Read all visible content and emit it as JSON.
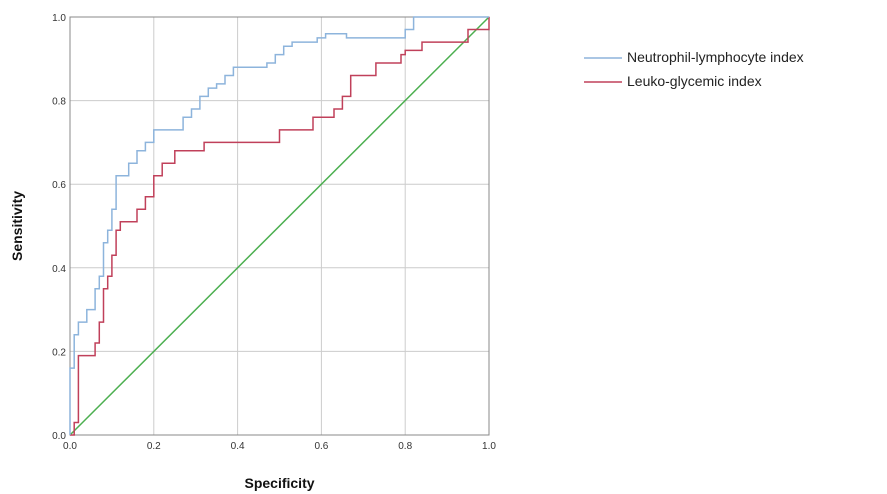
{
  "chart_data": {
    "type": "line",
    "title": "",
    "xlabel": "Specificity",
    "ylabel": "Sensitivity",
    "xlim": [
      0.0,
      1.0
    ],
    "ylim": [
      0.0,
      1.0
    ],
    "xticks": [
      "0.0",
      "0.2",
      "0.4",
      "0.6",
      "0.8",
      "1.0"
    ],
    "yticks": [
      "0.0",
      "0.2",
      "0.4",
      "0.6",
      "0.8",
      "1.0"
    ],
    "grid": true,
    "legend_position": "top-right",
    "series": [
      {
        "name": "Neutrophil-lymphocyte index",
        "color": "#8db4dc",
        "x": [
          0.0,
          0.0,
          0.01,
          0.01,
          0.02,
          0.02,
          0.04,
          0.04,
          0.06,
          0.06,
          0.07,
          0.07,
          0.08,
          0.08,
          0.09,
          0.09,
          0.1,
          0.1,
          0.11,
          0.11,
          0.14,
          0.14,
          0.16,
          0.16,
          0.18,
          0.18,
          0.2,
          0.2,
          0.27,
          0.27,
          0.29,
          0.29,
          0.31,
          0.31,
          0.33,
          0.33,
          0.35,
          0.35,
          0.37,
          0.37,
          0.39,
          0.39,
          0.47,
          0.47,
          0.49,
          0.49,
          0.51,
          0.51,
          0.53,
          0.53,
          0.59,
          0.59,
          0.61,
          0.61,
          0.66,
          0.66,
          0.8,
          0.8,
          0.82,
          0.82,
          1.0
        ],
        "y": [
          0.0,
          0.16,
          0.16,
          0.24,
          0.24,
          0.27,
          0.27,
          0.3,
          0.3,
          0.35,
          0.35,
          0.38,
          0.38,
          0.46,
          0.46,
          0.49,
          0.49,
          0.54,
          0.54,
          0.62,
          0.62,
          0.65,
          0.65,
          0.68,
          0.68,
          0.7,
          0.7,
          0.73,
          0.73,
          0.76,
          0.76,
          0.78,
          0.78,
          0.81,
          0.81,
          0.83,
          0.83,
          0.84,
          0.84,
          0.86,
          0.86,
          0.88,
          0.88,
          0.89,
          0.89,
          0.91,
          0.91,
          0.93,
          0.93,
          0.94,
          0.94,
          0.95,
          0.95,
          0.96,
          0.96,
          0.95,
          0.95,
          0.97,
          0.97,
          1.0,
          1.0
        ]
      },
      {
        "name": "Leuko-glycemic index",
        "color": "#c0405a",
        "x": [
          0.0,
          0.01,
          0.01,
          0.02,
          0.02,
          0.06,
          0.06,
          0.07,
          0.07,
          0.08,
          0.08,
          0.09,
          0.09,
          0.1,
          0.1,
          0.11,
          0.11,
          0.12,
          0.12,
          0.16,
          0.16,
          0.18,
          0.18,
          0.2,
          0.2,
          0.22,
          0.22,
          0.25,
          0.25,
          0.32,
          0.32,
          0.35,
          0.35,
          0.5,
          0.5,
          0.58,
          0.58,
          0.63,
          0.63,
          0.65,
          0.65,
          0.67,
          0.67,
          0.73,
          0.73,
          0.78,
          0.78,
          0.79,
          0.79,
          0.8,
          0.8,
          0.84,
          0.84,
          0.95,
          0.95,
          0.97,
          0.97,
          1.0,
          1.0
        ],
        "y": [
          0.0,
          0.0,
          0.03,
          0.03,
          0.19,
          0.19,
          0.22,
          0.22,
          0.27,
          0.27,
          0.35,
          0.35,
          0.38,
          0.38,
          0.43,
          0.43,
          0.49,
          0.49,
          0.51,
          0.51,
          0.54,
          0.54,
          0.57,
          0.57,
          0.62,
          0.62,
          0.65,
          0.65,
          0.68,
          0.68,
          0.7,
          0.7,
          0.7,
          0.7,
          0.73,
          0.73,
          0.76,
          0.76,
          0.78,
          0.78,
          0.81,
          0.81,
          0.86,
          0.86,
          0.89,
          0.89,
          0.89,
          0.89,
          0.91,
          0.91,
          0.92,
          0.92,
          0.94,
          0.94,
          0.97,
          0.97,
          0.97,
          0.97,
          1.0
        ]
      },
      {
        "name": "",
        "color": "#4caf50",
        "x": [
          0.0,
          1.0
        ],
        "y": [
          0.0,
          1.0
        ]
      }
    ]
  }
}
